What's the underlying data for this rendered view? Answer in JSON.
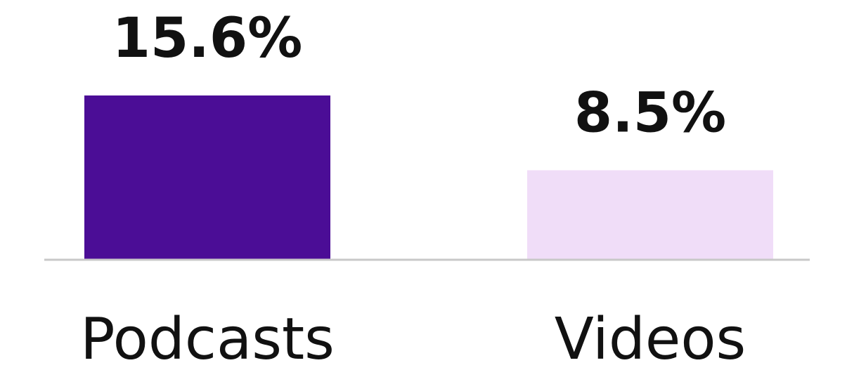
{
  "chart_data": {
    "type": "bar",
    "categories": [
      "Podcasts",
      "Videos"
    ],
    "values": [
      15.6,
      8.5
    ],
    "value_labels": [
      "15.6%",
      "8.5%"
    ],
    "colors": [
      "#4b0d96",
      "#f0ddf8"
    ],
    "ylim": [
      0,
      16
    ],
    "grid": false
  }
}
